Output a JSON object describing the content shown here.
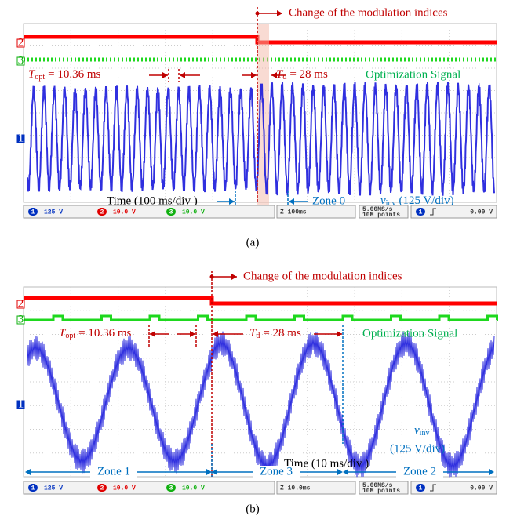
{
  "panels": [
    {
      "annotation": "Change of the modulation indices",
      "t_opt": {
        "symbol": "T",
        "subscript": "opt",
        "text": "= 10.36 ms"
      },
      "t_d": {
        "symbol": "T",
        "subscript": "d",
        "text": "= 28 ms"
      },
      "signal_label": "Optimization Signal",
      "time_label": "Time (100 ms/div )",
      "zones": [
        "Zone 0"
      ],
      "voltage": {
        "symbol": "v",
        "subscript": "inv",
        "text": "(125 V/div)"
      },
      "channels": [
        {
          "number": "1",
          "setting": "125 V"
        },
        {
          "number": "2",
          "setting": "10.0 V"
        },
        {
          "number": "3",
          "setting": "10.0 V"
        }
      ],
      "timebase": "Z 100ms",
      "sample_rate": "5.00MS/s",
      "record": "10M points",
      "trigger": "0.00 V",
      "caption": "(a)"
    },
    {
      "annotation": "Change of the modulation indices",
      "t_opt": {
        "symbol": "T",
        "subscript": "opt",
        "text": "= 10.36 ms"
      },
      "t_d": {
        "symbol": "T",
        "subscript": "d",
        "text": "= 28 ms"
      },
      "signal_label": "Optimization Signal",
      "time_label": "Time (10 ms/div )",
      "zones": [
        "Zone 1",
        "Zone 3",
        "Zone 2"
      ],
      "voltage": {
        "symbol": "v",
        "subscript": "inv",
        "text": "(125 V/div)"
      },
      "channels": [
        {
          "number": "1",
          "setting": "125 V"
        },
        {
          "number": "2",
          "setting": "10.0 V"
        },
        {
          "number": "3",
          "setting": "10.0 V"
        }
      ],
      "timebase": "Z 10.0ms",
      "sample_rate": "5.00MS/s",
      "record": "10M points",
      "trigger": "0.00 V",
      "caption": "(b)"
    }
  ]
}
